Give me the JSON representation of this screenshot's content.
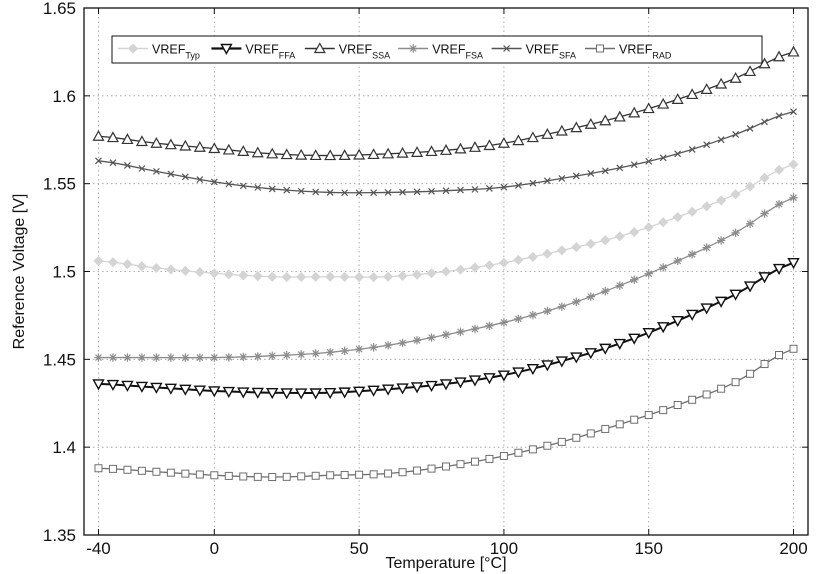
{
  "chart_data": {
    "type": "line",
    "title": "",
    "xlabel": "Temperature [°C]",
    "ylabel": "Reference Voltage [V]",
    "xlim": [
      -45,
      205
    ],
    "ylim": [
      1.35,
      1.65
    ],
    "xticks": [
      "-40",
      "0",
      "50",
      "100",
      "150",
      "200"
    ],
    "xtick_values": [
      -40,
      0,
      50,
      100,
      150,
      200
    ],
    "yticks": [
      "1.35",
      "1.4",
      "1.45",
      "1.5",
      "1.55",
      "1.6",
      "1.65"
    ],
    "ytick_values": [
      1.35,
      1.4,
      1.45,
      1.5,
      1.55,
      1.6,
      1.65
    ],
    "grid": true,
    "legend_position": "top",
    "x": [
      -40,
      -20,
      0,
      20,
      40,
      60,
      80,
      100,
      120,
      140,
      160,
      180,
      200
    ],
    "series": [
      {
        "name_main": "VREF",
        "name_sub": "Typ",
        "color": "#d4d4d4",
        "marker": "diamond",
        "values": [
          1.506,
          1.502,
          1.499,
          1.497,
          1.497,
          1.497,
          1.5,
          1.505,
          1.512,
          1.52,
          1.531,
          1.544,
          1.561
        ]
      },
      {
        "name_main": "VREF",
        "name_sub": "FFA",
        "color": "#111111",
        "marker": "triangle-down",
        "values": [
          1.436,
          1.434,
          1.432,
          1.431,
          1.431,
          1.433,
          1.436,
          1.441,
          1.449,
          1.459,
          1.472,
          1.487,
          1.505
        ]
      },
      {
        "name_main": "VREF",
        "name_sub": "SSA",
        "color": "#333333",
        "marker": "triangle-up",
        "values": [
          1.577,
          1.573,
          1.57,
          1.567,
          1.566,
          1.567,
          1.569,
          1.573,
          1.58,
          1.588,
          1.598,
          1.61,
          1.625
        ]
      },
      {
        "name_main": "VREF",
        "name_sub": "FSA",
        "color": "#8c8c8c",
        "marker": "star",
        "values": [
          1.451,
          1.451,
          1.451,
          1.452,
          1.454,
          1.458,
          1.464,
          1.471,
          1.48,
          1.492,
          1.506,
          1.522,
          1.542
        ]
      },
      {
        "name_main": "VREF",
        "name_sub": "SFA",
        "color": "#555555",
        "marker": "x",
        "values": [
          1.563,
          1.557,
          1.551,
          1.547,
          1.545,
          1.545,
          1.546,
          1.548,
          1.553,
          1.559,
          1.567,
          1.578,
          1.591
        ]
      },
      {
        "name_main": "VREF",
        "name_sub": "RAD",
        "color": "#6e6e6e",
        "marker": "square",
        "values": [
          1.388,
          1.386,
          1.384,
          1.383,
          1.384,
          1.385,
          1.389,
          1.395,
          1.403,
          1.413,
          1.424,
          1.437,
          1.456
        ]
      }
    ]
  }
}
